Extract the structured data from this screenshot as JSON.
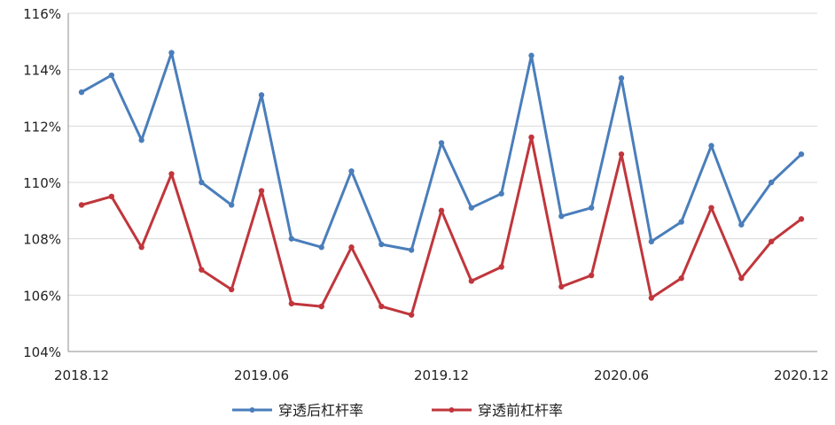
{
  "chart_data": {
    "type": "line",
    "title": "",
    "xlabel": "",
    "ylabel": "",
    "x_tick_labels": [
      "2018.12",
      "2019.06",
      "2019.12",
      "2020.06",
      "2020.12"
    ],
    "x_tick_indices": [
      0,
      6,
      12,
      18,
      24
    ],
    "y_tick_labels": [
      "104%",
      "106%",
      "108%",
      "110%",
      "112%",
      "114%",
      "116%"
    ],
    "ylim": [
      104,
      116
    ],
    "grid": "horizontal",
    "legend_position": "bottom",
    "series": [
      {
        "name": "穿透后杠杆率",
        "color": "#4a7ebb",
        "values": [
          113.2,
          113.8,
          111.5,
          114.6,
          110.0,
          109.2,
          113.1,
          108.0,
          107.7,
          110.4,
          107.8,
          107.6,
          111.4,
          109.1,
          109.6,
          114.5,
          108.8,
          109.1,
          113.7,
          107.9,
          108.6,
          111.3,
          108.5,
          110.0,
          111.0
        ]
      },
      {
        "name": "穿透前杠杆率",
        "color": "#c0363c",
        "values": [
          109.2,
          109.5,
          107.7,
          110.3,
          106.9,
          106.2,
          109.7,
          105.7,
          105.6,
          107.7,
          105.6,
          105.3,
          109.0,
          106.5,
          107.0,
          111.6,
          106.3,
          106.7,
          111.0,
          105.9,
          106.6,
          109.1,
          106.6,
          107.9,
          108.7
        ]
      }
    ]
  }
}
